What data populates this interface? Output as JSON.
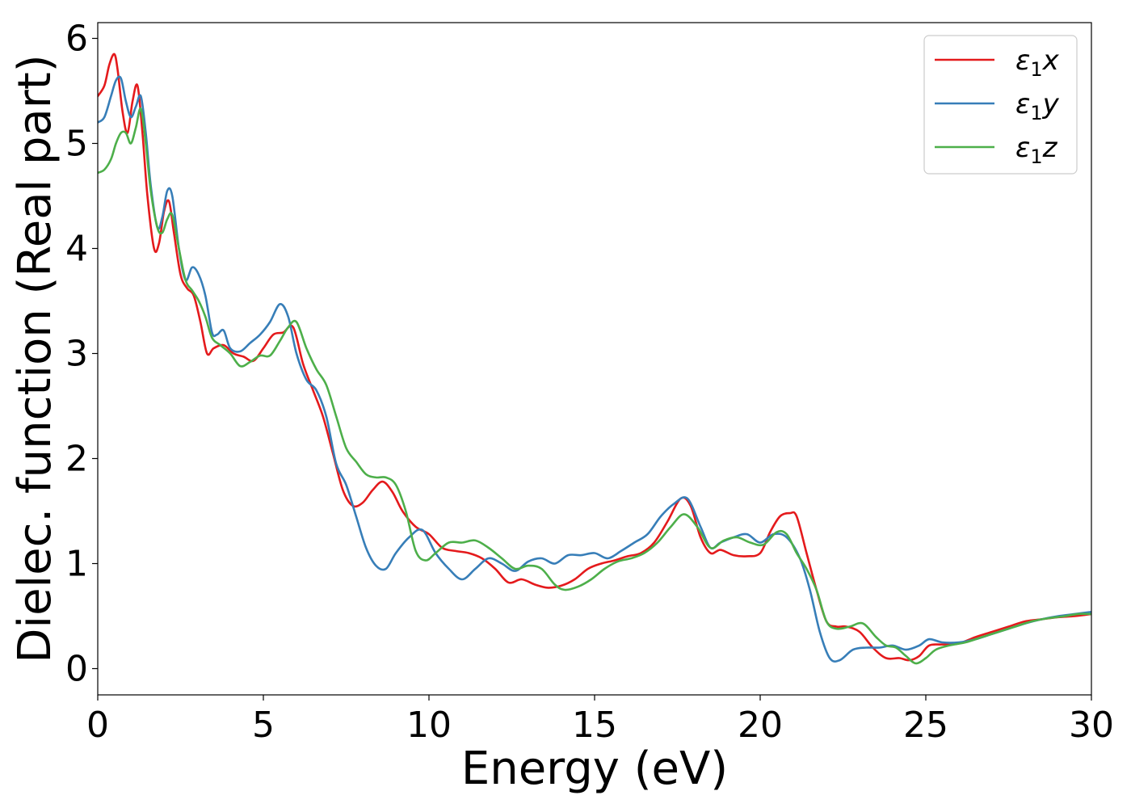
{
  "chart_data": {
    "type": "line",
    "title": "",
    "xlabel": "Energy (eV)",
    "ylabel": "Dielec. function (Real part)",
    "xlim": [
      0,
      30
    ],
    "ylim": [
      -0.25,
      6.15
    ],
    "xticks": [
      0,
      5,
      10,
      15,
      20,
      25,
      30
    ],
    "yticks": [
      0,
      1,
      2,
      3,
      4,
      5,
      6
    ],
    "grid": false,
    "legend_position": "top-right",
    "series": [
      {
        "name": "ε1x",
        "label_base": "ε",
        "label_sub": "1",
        "label_axis": "x",
        "color": "#e41a1c",
        "x": [
          0,
          0.2,
          0.35,
          0.5,
          0.6,
          0.75,
          0.9,
          1.05,
          1.2,
          1.35,
          1.5,
          1.7,
          1.85,
          2.0,
          2.15,
          2.3,
          2.5,
          2.7,
          2.9,
          3.1,
          3.3,
          3.5,
          3.8,
          4.1,
          4.4,
          4.7,
          5.0,
          5.3,
          5.6,
          5.9,
          6.2,
          6.5,
          6.8,
          7.1,
          7.4,
          7.7,
          8.0,
          8.3,
          8.6,
          8.9,
          9.2,
          9.6,
          10.0,
          10.4,
          10.8,
          11.2,
          11.6,
          12.0,
          12.4,
          12.8,
          13.2,
          13.6,
          14.0,
          14.4,
          14.8,
          15.2,
          15.6,
          16.0,
          16.4,
          16.8,
          17.2,
          17.6,
          17.9,
          18.2,
          18.5,
          18.8,
          19.2,
          19.6,
          20.0,
          20.3,
          20.6,
          20.9,
          21.1,
          21.4,
          21.7,
          22.0,
          22.3,
          22.6,
          23.0,
          23.4,
          23.8,
          24.2,
          24.5,
          24.8,
          25.1,
          25.5,
          26.0,
          26.5,
          27.0,
          27.5,
          28.0,
          28.5,
          29.0,
          29.5,
          30.0
        ],
        "y": [
          5.45,
          5.55,
          5.75,
          5.85,
          5.7,
          5.3,
          5.1,
          5.4,
          5.55,
          5.1,
          4.5,
          4.0,
          4.05,
          4.35,
          4.45,
          4.15,
          3.75,
          3.62,
          3.55,
          3.3,
          3.0,
          3.05,
          3.08,
          3.0,
          2.97,
          2.93,
          3.05,
          3.18,
          3.2,
          3.25,
          2.9,
          2.65,
          2.4,
          2.05,
          1.7,
          1.55,
          1.58,
          1.7,
          1.78,
          1.68,
          1.5,
          1.35,
          1.28,
          1.15,
          1.12,
          1.1,
          1.05,
          0.95,
          0.82,
          0.85,
          0.8,
          0.77,
          0.79,
          0.85,
          0.95,
          1.0,
          1.03,
          1.07,
          1.1,
          1.2,
          1.4,
          1.62,
          1.55,
          1.25,
          1.1,
          1.13,
          1.08,
          1.07,
          1.1,
          1.3,
          1.45,
          1.48,
          1.45,
          1.1,
          0.75,
          0.45,
          0.4,
          0.4,
          0.35,
          0.2,
          0.1,
          0.1,
          0.08,
          0.12,
          0.22,
          0.23,
          0.24,
          0.3,
          0.35,
          0.4,
          0.45,
          0.47,
          0.49,
          0.5,
          0.52
        ]
      },
      {
        "name": "ε1y",
        "label_base": "ε",
        "label_sub": "1",
        "label_axis": "y",
        "color": "#377eb8",
        "x": [
          0,
          0.2,
          0.4,
          0.55,
          0.7,
          0.85,
          1.0,
          1.15,
          1.3,
          1.45,
          1.6,
          1.8,
          1.95,
          2.1,
          2.25,
          2.45,
          2.65,
          2.85,
          3.05,
          3.25,
          3.45,
          3.6,
          3.8,
          4.0,
          4.3,
          4.6,
          4.9,
          5.2,
          5.5,
          5.75,
          6.0,
          6.3,
          6.6,
          6.9,
          7.2,
          7.5,
          7.8,
          8.1,
          8.4,
          8.7,
          9.0,
          9.4,
          9.8,
          10.2,
          10.6,
          11.0,
          11.4,
          11.8,
          12.2,
          12.6,
          13.0,
          13.4,
          13.8,
          14.2,
          14.6,
          15.0,
          15.4,
          15.8,
          16.2,
          16.6,
          17.0,
          17.4,
          17.8,
          18.2,
          18.5,
          18.8,
          19.2,
          19.6,
          20.0,
          20.4,
          20.8,
          21.2,
          21.5,
          21.8,
          22.1,
          22.4,
          22.8,
          23.2,
          23.6,
          24.0,
          24.4,
          24.8,
          25.1,
          25.5,
          26.0,
          26.5,
          27.0,
          27.5,
          28.0,
          28.5,
          29.0,
          29.5,
          30.0
        ],
        "y": [
          5.2,
          5.25,
          5.45,
          5.6,
          5.62,
          5.4,
          5.25,
          5.35,
          5.45,
          5.1,
          4.6,
          4.2,
          4.3,
          4.55,
          4.5,
          4.0,
          3.7,
          3.82,
          3.75,
          3.55,
          3.2,
          3.18,
          3.22,
          3.05,
          3.02,
          3.1,
          3.18,
          3.3,
          3.47,
          3.35,
          3.0,
          2.75,
          2.65,
          2.4,
          1.95,
          1.75,
          1.45,
          1.15,
          0.98,
          0.95,
          1.1,
          1.25,
          1.32,
          1.1,
          0.95,
          0.85,
          0.95,
          1.05,
          1.0,
          0.93,
          1.02,
          1.05,
          1.0,
          1.08,
          1.08,
          1.1,
          1.05,
          1.12,
          1.2,
          1.28,
          1.45,
          1.57,
          1.62,
          1.35,
          1.15,
          1.2,
          1.25,
          1.28,
          1.2,
          1.28,
          1.25,
          1.05,
          0.75,
          0.35,
          0.1,
          0.08,
          0.18,
          0.2,
          0.2,
          0.22,
          0.18,
          0.22,
          0.28,
          0.25,
          0.25,
          0.28,
          0.33,
          0.38,
          0.43,
          0.47,
          0.5,
          0.52,
          0.54
        ]
      },
      {
        "name": "ε1z",
        "label_base": "ε",
        "label_sub": "1",
        "label_axis": "z",
        "color": "#4daf4a",
        "x": [
          0,
          0.2,
          0.4,
          0.55,
          0.7,
          0.85,
          1.0,
          1.15,
          1.3,
          1.45,
          1.6,
          1.8,
          1.95,
          2.1,
          2.25,
          2.45,
          2.65,
          2.85,
          3.05,
          3.25,
          3.45,
          3.7,
          4.0,
          4.3,
          4.6,
          4.9,
          5.2,
          5.5,
          5.75,
          6.0,
          6.3,
          6.6,
          6.9,
          7.2,
          7.5,
          7.8,
          8.1,
          8.4,
          8.7,
          9.0,
          9.3,
          9.6,
          9.9,
          10.2,
          10.6,
          11.0,
          11.4,
          11.8,
          12.2,
          12.6,
          13.0,
          13.4,
          13.8,
          14.1,
          14.5,
          14.9,
          15.3,
          15.7,
          16.1,
          16.5,
          16.9,
          17.3,
          17.7,
          18.1,
          18.5,
          18.9,
          19.3,
          19.7,
          20.1,
          20.5,
          20.8,
          21.1,
          21.4,
          21.7,
          22.0,
          22.3,
          22.7,
          23.1,
          23.5,
          23.8,
          24.1,
          24.4,
          24.7,
          25.0,
          25.3,
          25.7,
          26.2,
          26.7,
          27.2,
          27.7,
          28.2,
          28.7,
          29.2,
          29.6,
          30.0
        ],
        "y": [
          4.72,
          4.75,
          4.85,
          5.0,
          5.1,
          5.1,
          5.0,
          5.15,
          5.33,
          5.0,
          4.55,
          4.2,
          4.15,
          4.28,
          4.32,
          4.0,
          3.7,
          3.6,
          3.5,
          3.35,
          3.15,
          3.08,
          3.0,
          2.88,
          2.92,
          2.98,
          2.98,
          3.12,
          3.25,
          3.3,
          3.05,
          2.85,
          2.7,
          2.4,
          2.1,
          1.97,
          1.85,
          1.82,
          1.82,
          1.75,
          1.5,
          1.12,
          1.03,
          1.1,
          1.2,
          1.2,
          1.22,
          1.15,
          1.05,
          0.95,
          0.98,
          0.95,
          0.8,
          0.75,
          0.78,
          0.85,
          0.95,
          1.02,
          1.05,
          1.1,
          1.2,
          1.35,
          1.47,
          1.35,
          1.15,
          1.22,
          1.25,
          1.2,
          1.18,
          1.3,
          1.28,
          1.1,
          0.95,
          0.75,
          0.45,
          0.38,
          0.4,
          0.43,
          0.3,
          0.22,
          0.2,
          0.12,
          0.05,
          0.1,
          0.18,
          0.22,
          0.25,
          0.3,
          0.35,
          0.4,
          0.45,
          0.48,
          0.5,
          0.52,
          0.52
        ]
      }
    ]
  }
}
